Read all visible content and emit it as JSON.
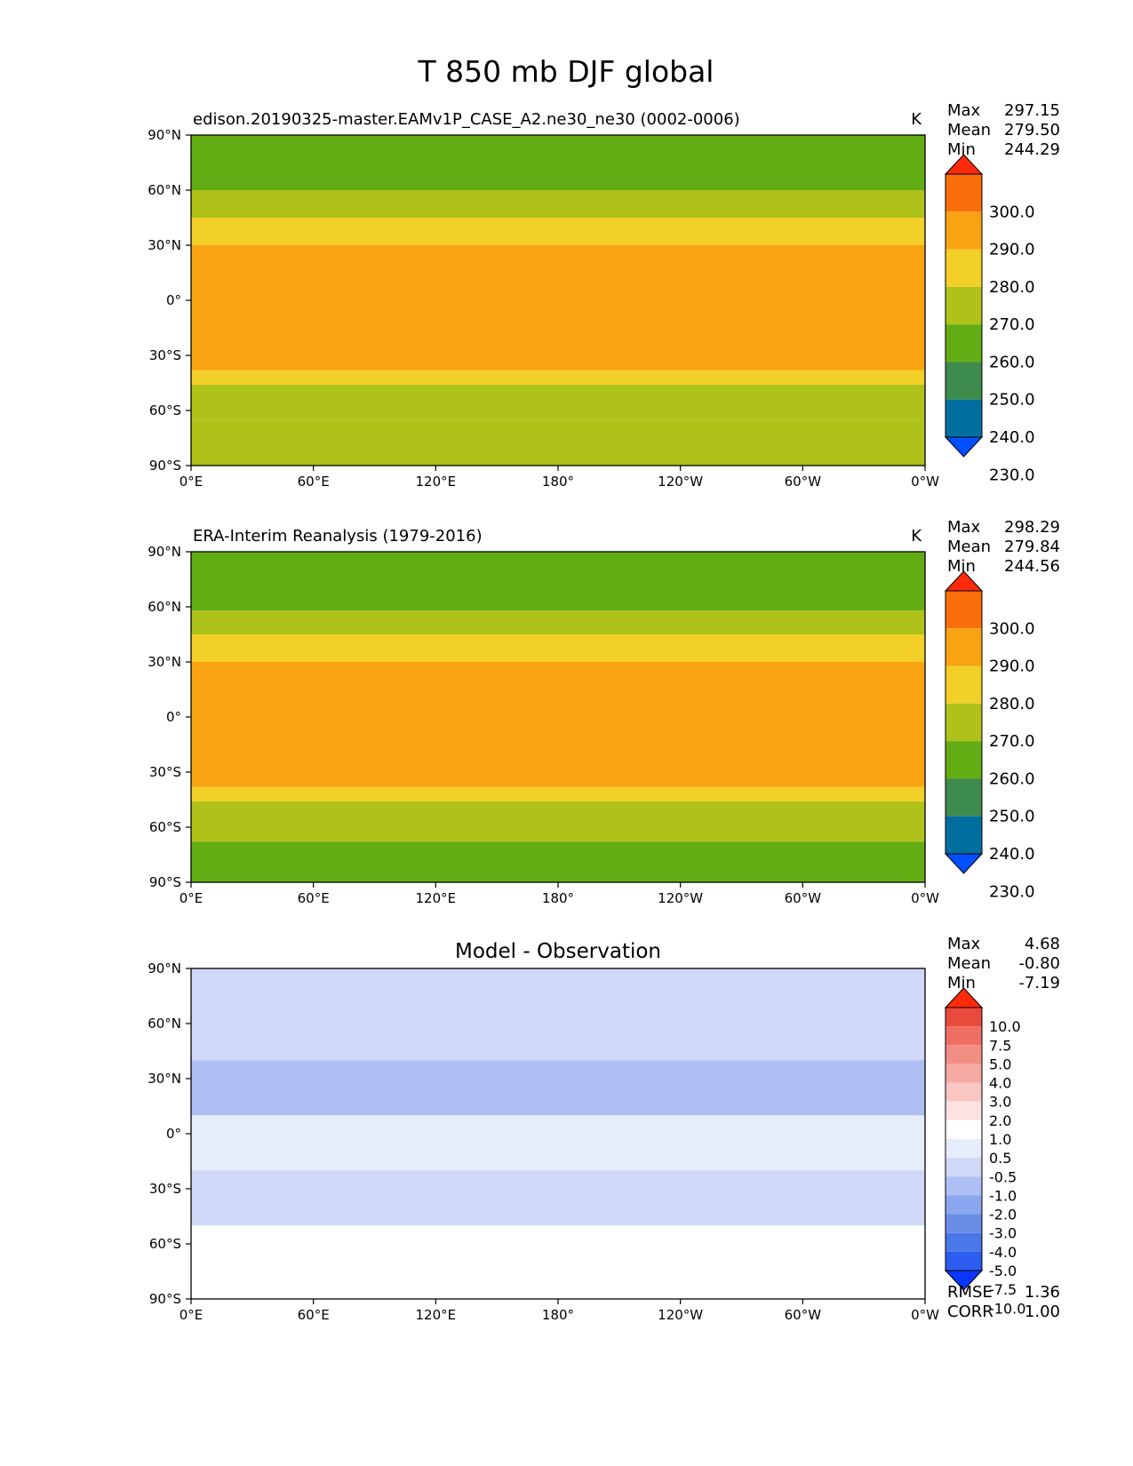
{
  "title": "T 850 mb DJF global",
  "chart_data": [
    {
      "type": "heatmap",
      "title": "edison.20190325-master.EAMv1P_CASE_A2.ne30_ne30 (0002-0006)",
      "units": "K",
      "stats": [
        {
          "label": "Max",
          "value": "297.15"
        },
        {
          "label": "Mean",
          "value": "279.50"
        },
        {
          "label": "Min",
          "value": "244.29"
        }
      ],
      "xticks": [
        "0°E",
        "60°E",
        "120°E",
        "180°",
        "120°W",
        "60°W",
        "0°W"
      ],
      "yticks": [
        "90°N",
        "60°N",
        "30°N",
        "0°",
        "30°S",
        "60°S",
        "90°S"
      ],
      "xlim": [
        0,
        360
      ],
      "ylim": [
        -90,
        90
      ],
      "colorbar": {
        "labels": [
          "300.0",
          "290.0",
          "280.0",
          "270.0",
          "260.0",
          "250.0",
          "240.0",
          "230.0"
        ],
        "levels": [
          230,
          240,
          250,
          260,
          270,
          280,
          290,
          300
        ],
        "colors": [
          "#0050ff",
          "#006fa0",
          "#3d8c4d",
          "#63ad14",
          "#aec21a",
          "#f2d027",
          "#faa313",
          "#fa6f0c",
          "#ff2a0a"
        ]
      },
      "bands_top_to_bottom": [
        {
          "from_lat": 90,
          "to_lat": 60,
          "value": 255
        },
        {
          "from_lat": 60,
          "to_lat": 45,
          "value": 262
        },
        {
          "from_lat": 45,
          "to_lat": 30,
          "value": 272
        },
        {
          "from_lat": 30,
          "to_lat": -38,
          "value": 283
        },
        {
          "from_lat": -38,
          "to_lat": -46,
          "value": 275
        },
        {
          "from_lat": -46,
          "to_lat": -65,
          "value": 265
        },
        {
          "from_lat": -65,
          "to_lat": -90,
          "value": 262
        }
      ],
      "rmse": null,
      "corr": null
    },
    {
      "type": "heatmap",
      "title": "ERA-Interim Reanalysis (1979-2016)",
      "units": "K",
      "stats": [
        {
          "label": "Max",
          "value": "298.29"
        },
        {
          "label": "Mean",
          "value": "279.84"
        },
        {
          "label": "Min",
          "value": "244.56"
        }
      ],
      "xticks": [
        "0°E",
        "60°E",
        "120°E",
        "180°",
        "120°W",
        "60°W",
        "0°W"
      ],
      "yticks": [
        "90°N",
        "60°N",
        "30°N",
        "0°",
        "30°S",
        "60°S",
        "90°S"
      ],
      "xlim": [
        0,
        360
      ],
      "ylim": [
        -90,
        90
      ],
      "colorbar": {
        "labels": [
          "300.0",
          "290.0",
          "280.0",
          "270.0",
          "260.0",
          "250.0",
          "240.0",
          "230.0"
        ],
        "levels": [
          230,
          240,
          250,
          260,
          270,
          280,
          290,
          300
        ],
        "colors": [
          "#0050ff",
          "#006fa0",
          "#3d8c4d",
          "#63ad14",
          "#aec21a",
          "#f2d027",
          "#faa313",
          "#fa6f0c",
          "#ff2a0a"
        ]
      },
      "bands_top_to_bottom": [
        {
          "from_lat": 90,
          "to_lat": 58,
          "value": 255
        },
        {
          "from_lat": 58,
          "to_lat": 45,
          "value": 263
        },
        {
          "from_lat": 45,
          "to_lat": 30,
          "value": 273
        },
        {
          "from_lat": 30,
          "to_lat": -38,
          "value": 284
        },
        {
          "from_lat": -38,
          "to_lat": -46,
          "value": 275
        },
        {
          "from_lat": -46,
          "to_lat": -68,
          "value": 265
        },
        {
          "from_lat": -68,
          "to_lat": -90,
          "value": 255
        }
      ],
      "rmse": null,
      "corr": null
    },
    {
      "type": "heatmap",
      "title": "Model - Observation",
      "units": "",
      "stats": [
        {
          "label": "Max",
          "value": "4.68"
        },
        {
          "label": "Mean",
          "value": "-0.80"
        },
        {
          "label": "Min",
          "value": "-7.19"
        }
      ],
      "xticks": [
        "0°E",
        "60°E",
        "120°E",
        "180°",
        "120°W",
        "60°W",
        "0°W"
      ],
      "yticks": [
        "90°N",
        "60°N",
        "30°N",
        "0°",
        "30°S",
        "60°S",
        "90°S"
      ],
      "xlim": [
        0,
        360
      ],
      "ylim": [
        -90,
        90
      ],
      "colorbar": {
        "labels": [
          "10.0",
          "7.5",
          "5.0",
          "4.0",
          "3.0",
          "2.0",
          "1.0",
          "0.5",
          "-0.5",
          "-1.0",
          "-2.0",
          "-3.0",
          "-4.0",
          "-5.0",
          "-7.5",
          "-10.0"
        ],
        "levels": [
          -10,
          -7.5,
          -5,
          -4,
          -3,
          -2,
          -1,
          -0.5,
          0.5,
          1,
          2,
          3,
          4,
          5,
          7.5,
          10
        ],
        "colors": [
          "#0a36ff",
          "#2c5cf0",
          "#4a78e8",
          "#6a8ee8",
          "#8aa6ee",
          "#aebff3",
          "#cfd9f7",
          "#e6ecfa",
          "#ffffff",
          "#fce2e0",
          "#f9c6c1",
          "#f5aaa3",
          "#f38e85",
          "#ef6f64",
          "#ea4a3c",
          "#ff2a0a"
        ]
      },
      "bands_top_to_bottom": [
        {
          "from_lat": 90,
          "to_lat": 40,
          "value": -1.5
        },
        {
          "from_lat": 40,
          "to_lat": 10,
          "value": -2.5
        },
        {
          "from_lat": 10,
          "to_lat": -20,
          "value": -0.8
        },
        {
          "from_lat": -20,
          "to_lat": -50,
          "value": -2.0
        },
        {
          "from_lat": -50,
          "to_lat": -90,
          "value": 0.2
        }
      ],
      "rmse": {
        "label": "RMSE",
        "value": "1.36"
      },
      "corr": {
        "label": "CORR",
        "value": "1.00"
      }
    }
  ]
}
